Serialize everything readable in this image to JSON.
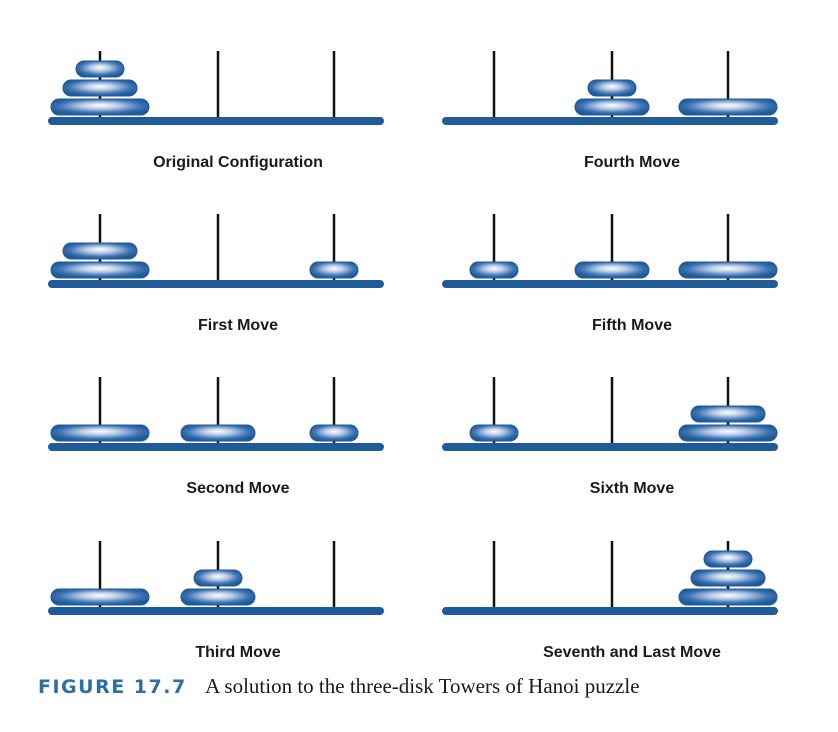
{
  "colors": {
    "base": "#1f5a99",
    "peg": "#111111",
    "disk_dark": "#1f5a99",
    "disk_light": "#ffffff",
    "caption_accent": "#2a6fa6"
  },
  "pegs": [
    "A",
    "B",
    "C"
  ],
  "panels": [
    {
      "label": "Original Configuration",
      "state": [
        [
          3,
          2,
          1
        ],
        [],
        []
      ]
    },
    {
      "label": "First Move",
      "state": [
        [
          3,
          2
        ],
        [],
        [
          1
        ]
      ]
    },
    {
      "label": "Second Move",
      "state": [
        [
          3
        ],
        [
          2
        ],
        [
          1
        ]
      ]
    },
    {
      "label": "Third Move",
      "state": [
        [
          3
        ],
        [
          2,
          1
        ],
        []
      ]
    },
    {
      "label": "Fourth Move",
      "state": [
        [],
        [
          2,
          1
        ],
        [
          3
        ]
      ]
    },
    {
      "label": "Fifth Move",
      "state": [
        [
          1
        ],
        [
          2
        ],
        [
          3
        ]
      ]
    },
    {
      "label": "Sixth Move",
      "state": [
        [
          1
        ],
        [],
        [
          3,
          2
        ]
      ]
    },
    {
      "label": "Seventh and Last  Move",
      "state": [
        [],
        [],
        [
          3,
          2,
          1
        ]
      ]
    }
  ],
  "caption": {
    "figure_number": "FIGURE 17.7",
    "text": "A solution to the three-disk Towers of Hanoi puzzle"
  }
}
